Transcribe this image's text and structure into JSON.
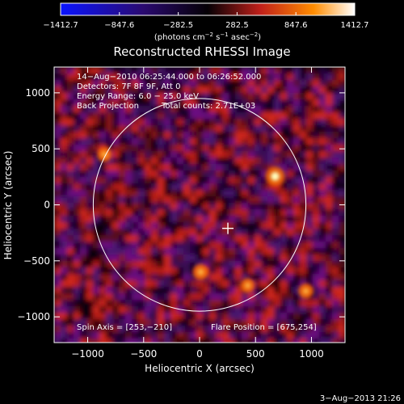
{
  "colorbar": {
    "tick_labels": [
      "−1412.7",
      "−847.6",
      "−282.5",
      "282.5",
      "847.6",
      "1412.7"
    ],
    "tick_values": [
      -1412.7,
      -847.6,
      -282.5,
      282.5,
      847.6,
      1412.7
    ],
    "range": [
      -1412.7,
      1412.7
    ],
    "units_prefix": "(photons cm",
    "units_exp1": "−2",
    "units_mid": " s",
    "units_exp2": "−1",
    "units_mid2": " asec",
    "units_exp3": "−2",
    "units_suffix": ")",
    "colors": [
      "#0a14ff",
      "#2a0a70",
      "#000000",
      "#c0201a",
      "#ff8c00",
      "#ffffff"
    ]
  },
  "chart_data": {
    "type": "heatmap",
    "title": "Reconstructed RHESSI Image",
    "xlabel": "Heliocentric X (arcsec)",
    "ylabel": "Heliocentric Y (arcsec)",
    "xlim": [
      -1300,
      1300
    ],
    "ylim": [
      -1230,
      1230
    ],
    "x_ticks": [
      -1000,
      -500,
      0,
      500,
      1000
    ],
    "y_ticks": [
      -1000,
      -500,
      0,
      500,
      1000
    ],
    "x_tick_labels": [
      "−1000",
      "−500",
      "0",
      "500",
      "1000"
    ],
    "y_tick_labels": [
      "−1000",
      "−500",
      "0",
      "500",
      "1000"
    ],
    "solar_limb_radius": 950,
    "spin_axis": [
      253,
      -210
    ],
    "flare_position": [
      675,
      254
    ],
    "bright_sources": [
      {
        "x": 675,
        "y": 254,
        "intensity": 1412.7
      },
      {
        "x": 10,
        "y": -600,
        "intensity": 800
      },
      {
        "x": -850,
        "y": 450,
        "intensity": 650
      },
      {
        "x": 430,
        "y": -720,
        "intensity": 600
      },
      {
        "x": 950,
        "y": -770,
        "intensity": 650
      }
    ]
  },
  "annotations": {
    "time_range": "14−Aug−2010 06:25:44.000 to 06:26:52.000",
    "detectors": "Detectors: 7F 8F 9F, Att 0",
    "energy": "Energy Range: 6.0 − 25.0 keV",
    "method": "Back Projection",
    "counts": "Total counts: 2.71E+03",
    "spin_axis": "Spin Axis = [253,−210]",
    "flare_position": "Flare Position = [675,254]"
  },
  "timestamp": "3−Aug−2013 21:26"
}
